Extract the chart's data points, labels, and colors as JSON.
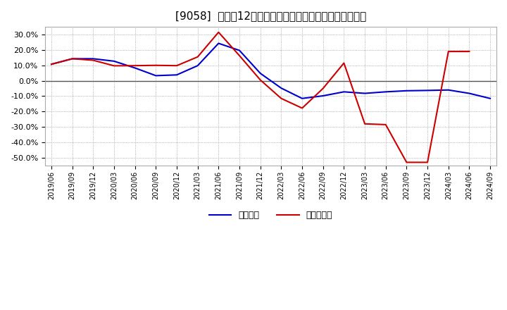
{
  "title": "[9058]  利益だ12か月移動合計の対前年同期増減率の推移",
  "x_labels": [
    "2019/06",
    "2019/09",
    "2019/12",
    "2020/03",
    "2020/06",
    "2020/09",
    "2020/12",
    "2021/03",
    "2021/06",
    "2021/09",
    "2021/12",
    "2022/03",
    "2022/06",
    "2022/09",
    "2022/12",
    "2023/03",
    "2023/06",
    "2023/09",
    "2023/12",
    "2024/03",
    "2024/06",
    "2024/09"
  ],
  "keijo_rieki": [
    0.107,
    0.143,
    0.143,
    0.127,
    0.083,
    0.033,
    0.038,
    0.098,
    0.243,
    0.197,
    0.048,
    -0.048,
    -0.115,
    -0.098,
    -0.072,
    -0.082,
    -0.072,
    -0.065,
    -0.063,
    -0.06,
    -0.082,
    -0.115
  ],
  "touki_junrieki": [
    0.107,
    0.143,
    0.133,
    0.097,
    0.098,
    0.1,
    0.098,
    0.155,
    0.315,
    0.163,
    0.005,
    -0.115,
    -0.178,
    -0.05,
    0.115,
    -0.28,
    -0.285,
    -0.53,
    -0.53,
    0.19,
    0.19,
    null
  ],
  "line_color_keijo": "#0000cc",
  "line_color_touki": "#cc0000",
  "background_color": "#ffffff",
  "plot_bg_color": "#ffffff",
  "grid_color": "#999999",
  "ylim": [
    -0.55,
    0.35
  ],
  "yticks": [
    -0.5,
    -0.4,
    -0.3,
    -0.2,
    -0.1,
    0.0,
    0.1,
    0.2,
    0.3
  ],
  "legend_keijo": "経常利益",
  "legend_touki": "当期純利益",
  "zero_line_color": "#555555",
  "title_fontsize": 11
}
